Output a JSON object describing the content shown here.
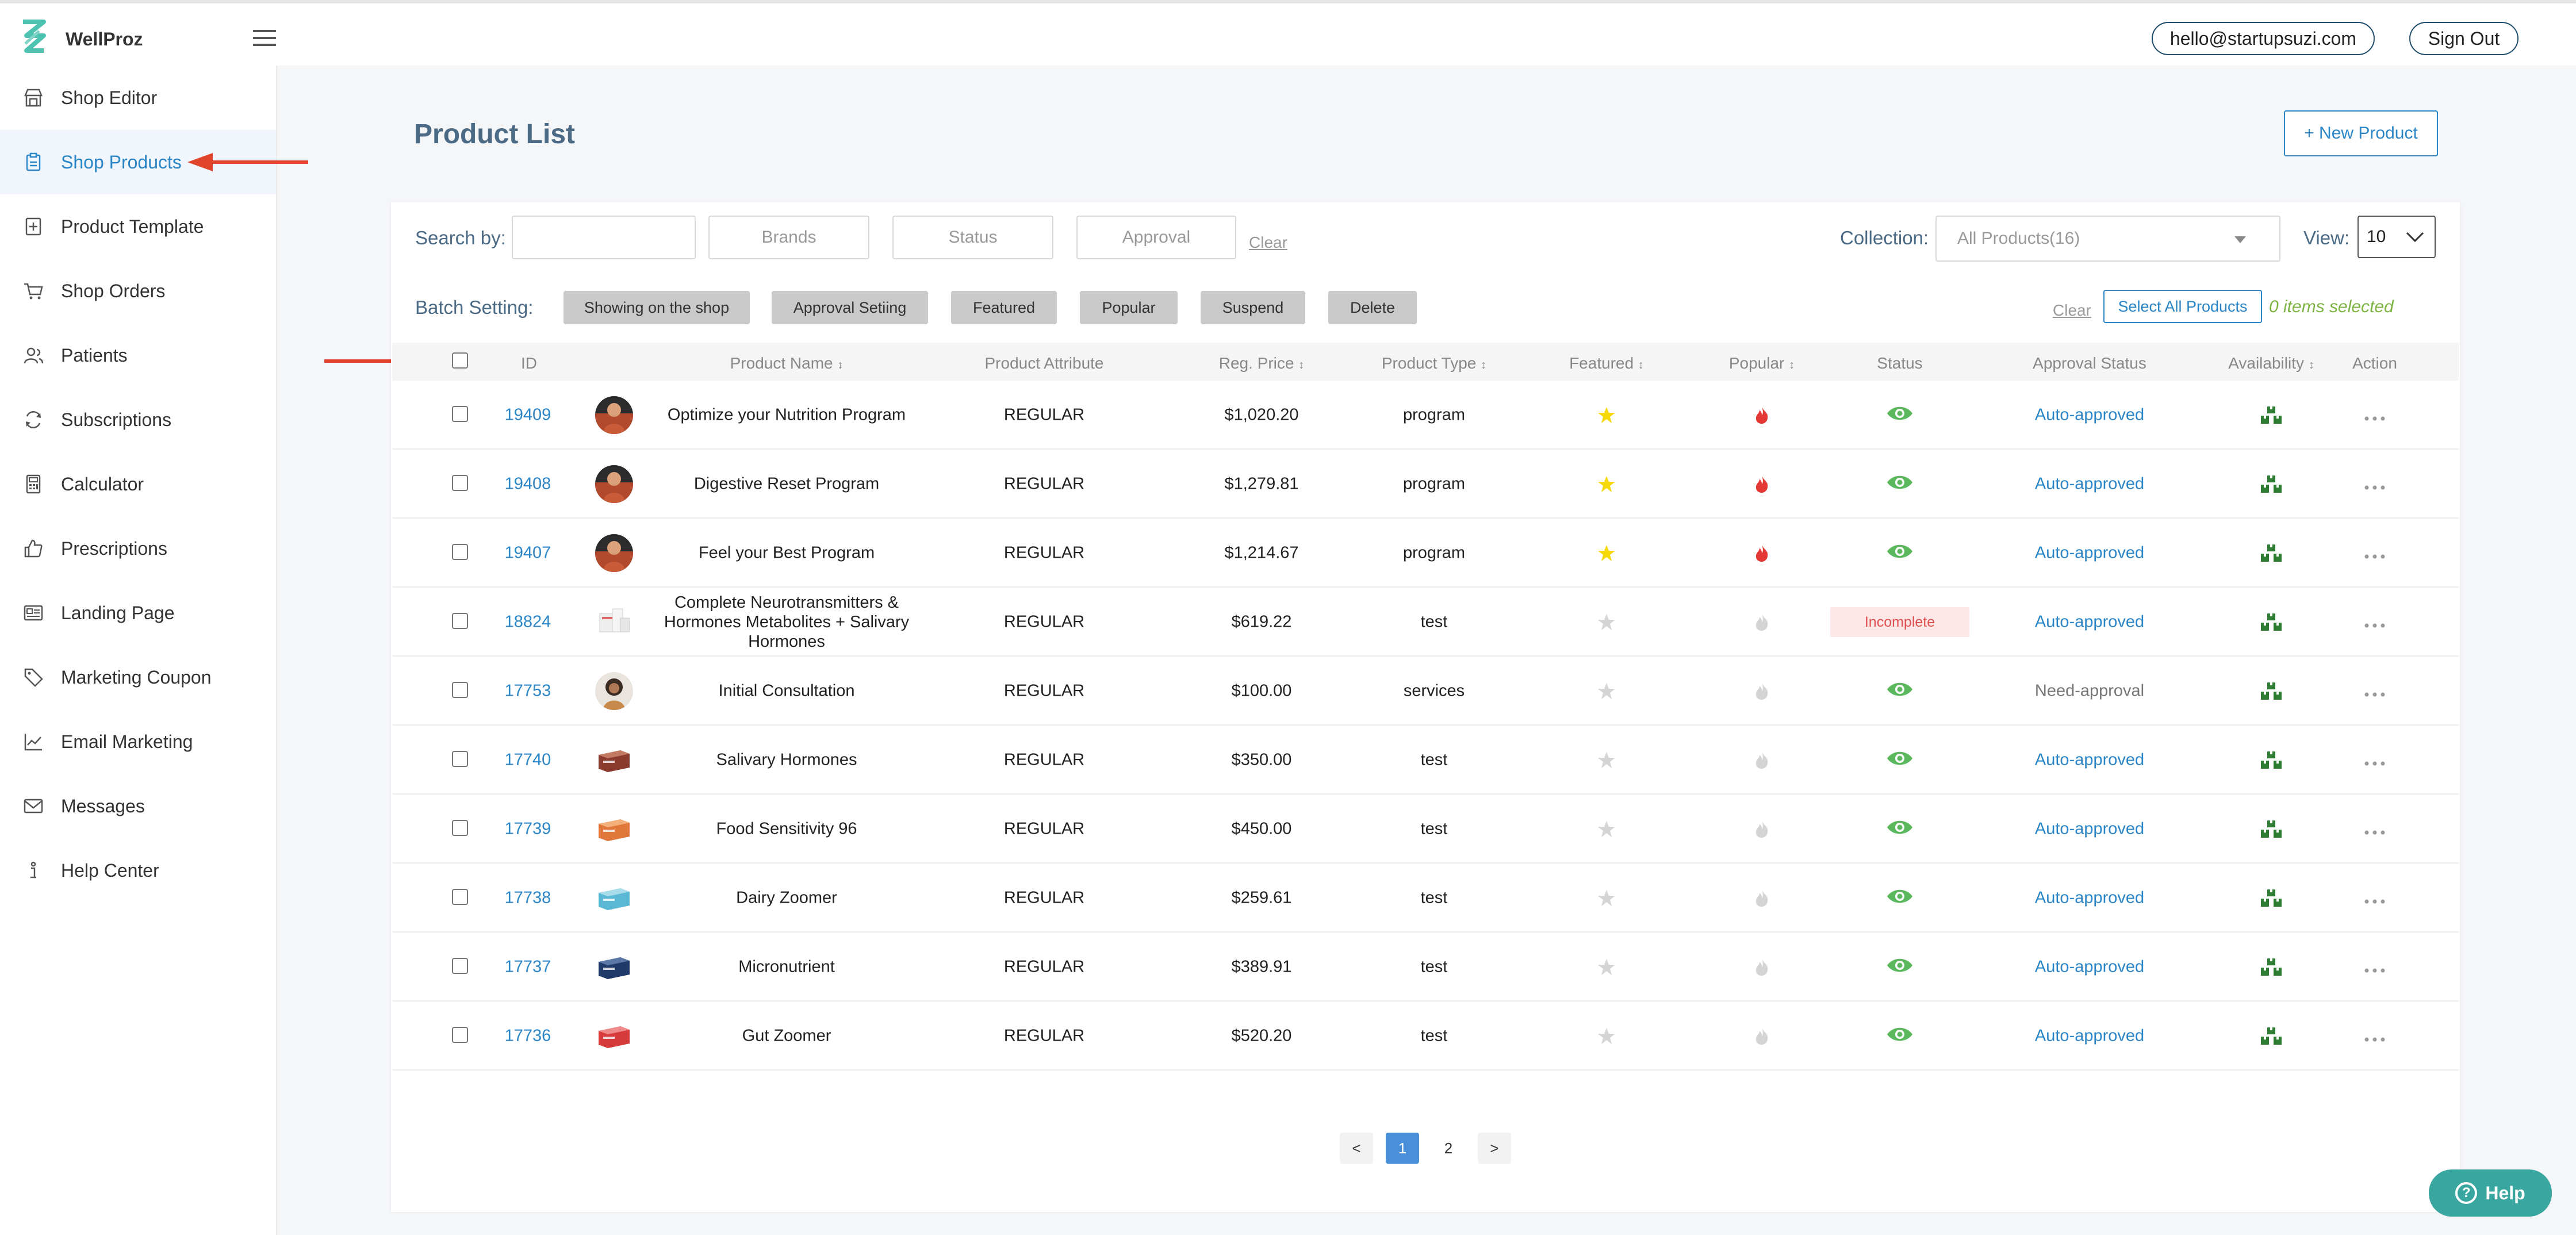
{
  "app": {
    "name": "WellProz"
  },
  "header": {
    "email": "hello@startupsuzi.com",
    "signout_label": "Sign Out"
  },
  "sidebar": {
    "items": [
      {
        "label": "Shop Editor",
        "icon": "shop-icon"
      },
      {
        "label": "Shop Products",
        "icon": "clipboard-icon",
        "active": true
      },
      {
        "label": "Product Template",
        "icon": "template-icon"
      },
      {
        "label": "Shop Orders",
        "icon": "cart-icon"
      },
      {
        "label": "Patients",
        "icon": "users-icon"
      },
      {
        "label": "Subscriptions",
        "icon": "refresh-icon"
      },
      {
        "label": "Calculator",
        "icon": "calculator-icon"
      },
      {
        "label": "Prescriptions",
        "icon": "thumbs-up-icon"
      },
      {
        "label": "Landing Page",
        "icon": "landing-icon"
      },
      {
        "label": "Marketing Coupon",
        "icon": "tag-icon"
      },
      {
        "label": "Email Marketing",
        "icon": "chart-line-icon"
      },
      {
        "label": "Messages",
        "icon": "mail-icon"
      },
      {
        "label": "Help Center",
        "icon": "info-icon"
      }
    ]
  },
  "page": {
    "title": "Product List",
    "new_product_label": "+ New Product"
  },
  "filters": {
    "search_label": "Search by:",
    "search_value": "",
    "brands_label": "Brands",
    "status_label": "Status",
    "approval_label": "Approval",
    "clear_label": "Clear",
    "collection_label": "Collection:",
    "collection_value": "All Products(16)",
    "view_label": "View:",
    "view_value": "10"
  },
  "batch": {
    "label": "Batch Setting:",
    "buttons": [
      "Showing on the shop",
      "Approval Setiing",
      "Featured",
      "Popular",
      "Suspend",
      "Delete"
    ],
    "clear_label": "Clear",
    "select_all_label": "Select All Products",
    "selected_text": "0 items selected"
  },
  "table": {
    "headers": {
      "id": "ID",
      "name": "Product Name",
      "attribute": "Product Attribute",
      "price": "Reg. Price",
      "type": "Product Type",
      "featured": "Featured",
      "popular": "Popular",
      "status": "Status",
      "approval": "Approval Status",
      "availability": "Availability",
      "action": "Action"
    },
    "sort_glyph": "↕",
    "rows": [
      {
        "id": "19409",
        "name": "Optimize your Nutrition Program",
        "attribute": "REGULAR",
        "price": "$1,020.20",
        "type": "program",
        "featured": true,
        "popular": true,
        "status": "visible",
        "approval": "Auto-approved",
        "thumb": "portrait-dark"
      },
      {
        "id": "19408",
        "name": "Digestive Reset Program",
        "attribute": "REGULAR",
        "price": "$1,279.81",
        "type": "program",
        "featured": true,
        "popular": true,
        "status": "visible",
        "approval": "Auto-approved",
        "thumb": "portrait-dark"
      },
      {
        "id": "19407",
        "name": "Feel your Best Program",
        "attribute": "REGULAR",
        "price": "$1,214.67",
        "type": "program",
        "featured": true,
        "popular": true,
        "status": "visible",
        "approval": "Auto-approved",
        "thumb": "portrait-dark"
      },
      {
        "id": "18824",
        "name": "Complete Neurotransmitters & Hormones Metabolites + Salivary Hormones",
        "attribute": "REGULAR",
        "price": "$619.22",
        "type": "test",
        "featured": false,
        "popular": false,
        "status": "Incomplete",
        "approval": "Auto-approved",
        "thumb": "kit-white"
      },
      {
        "id": "17753",
        "name": "Initial Consultation",
        "attribute": "REGULAR",
        "price": "$100.00",
        "type": "services",
        "featured": false,
        "popular": false,
        "status": "visible",
        "approval": "Need-approval",
        "thumb": "portrait-light"
      },
      {
        "id": "17740",
        "name": "Salivary Hormones",
        "attribute": "REGULAR",
        "price": "$350.00",
        "type": "test",
        "featured": false,
        "popular": false,
        "status": "visible",
        "approval": "Auto-approved",
        "thumb": "box-brown"
      },
      {
        "id": "17739",
        "name": "Food Sensitivity 96",
        "attribute": "REGULAR",
        "price": "$450.00",
        "type": "test",
        "featured": false,
        "popular": false,
        "status": "visible",
        "approval": "Auto-approved",
        "thumb": "box-orange"
      },
      {
        "id": "17738",
        "name": "Dairy Zoomer",
        "attribute": "REGULAR",
        "price": "$259.61",
        "type": "test",
        "featured": false,
        "popular": false,
        "status": "visible",
        "approval": "Auto-approved",
        "thumb": "box-teal"
      },
      {
        "id": "17737",
        "name": "Micronutrient",
        "attribute": "REGULAR",
        "price": "$389.91",
        "type": "test",
        "featured": false,
        "popular": false,
        "status": "visible",
        "approval": "Auto-approved",
        "thumb": "box-navy"
      },
      {
        "id": "17736",
        "name": "Gut Zoomer",
        "attribute": "REGULAR",
        "price": "$520.20",
        "type": "test",
        "featured": false,
        "popular": false,
        "status": "visible",
        "approval": "Auto-approved",
        "thumb": "box-red"
      }
    ]
  },
  "pagination": {
    "prev": "<",
    "pages": [
      "1",
      "2"
    ],
    "current": "1",
    "next": ">"
  },
  "help": {
    "label": "Help"
  },
  "colors": {
    "accent": "#2a86c7",
    "title": "#4a6a85",
    "star_on": "#f5d90a",
    "star_off": "#d4d4d4",
    "fire_on": "#e53935",
    "fire_off": "#d4d4d4",
    "eye": "#5cb85c",
    "availability": "#2e7d32",
    "help": "#3aa6a0",
    "annotation_arrow": "#e0452b"
  }
}
